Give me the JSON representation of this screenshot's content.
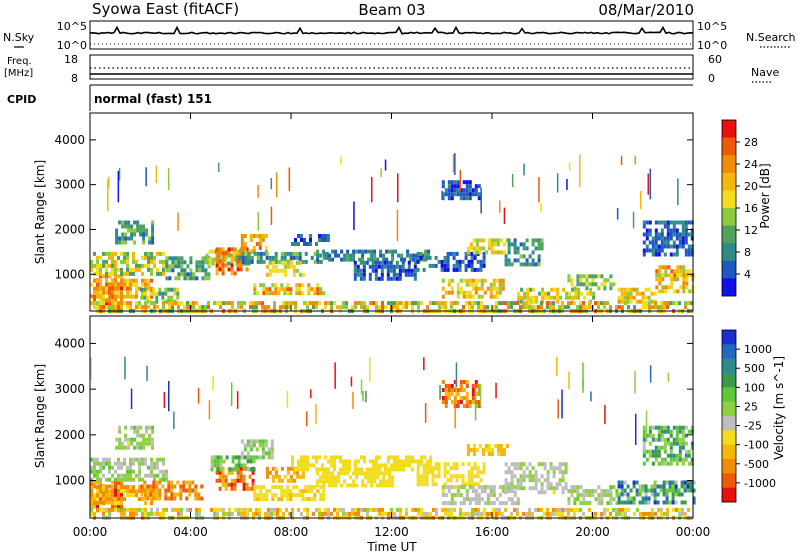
{
  "header": {
    "station": "Syowa East (fitACF)",
    "beam": "Beam 03",
    "date": "08/Mar/2010"
  },
  "nsky_panel": {
    "left_label": "N.Sky",
    "right_label": "N.Search",
    "tick_top": "10^5",
    "tick_bottom": "10^0"
  },
  "freq_panel": {
    "left_label_1": "Freq.",
    "left_label_2": "[MHz]",
    "right_label": "Nave",
    "left_ticks": [
      "18",
      "8"
    ],
    "right_ticks": [
      "60",
      "0"
    ]
  },
  "cpid_panel": {
    "left_label": "CPID",
    "mode": "normal (fast) 151"
  },
  "x_axis": {
    "label": "Time UT",
    "ticks": [
      "00:00",
      "04:00",
      "08:00",
      "12:00",
      "16:00",
      "20:00",
      "00:00"
    ]
  },
  "chart_data": [
    {
      "type": "heatmap",
      "name": "power",
      "ylabel": "Slant Range [km]",
      "ylim": [
        180,
        4600
      ],
      "yticks": [
        1000,
        2000,
        3000,
        4000
      ],
      "xlim_hours": [
        0,
        24
      ],
      "colorbar": {
        "label": "Power [dB]",
        "ticks": [
          "4",
          "8",
          "12",
          "16",
          "20",
          "24",
          "28"
        ],
        "colors": [
          "#1010e8",
          "#1f57c4",
          "#2f8a8a",
          "#4fa25e",
          "#8cc93c",
          "#f1dc1e",
          "#f5b70c",
          "#f28d0a",
          "#ef5a0a",
          "#e61010"
        ]
      },
      "patches": [
        {
          "t": [
            0,
            1.2
          ],
          "r": [
            300,
            1000
          ],
          "v": [
            20,
            32
          ]
        },
        {
          "t": [
            0,
            2.4
          ],
          "r": [
            500,
            900
          ],
          "v": [
            18,
            28
          ]
        },
        {
          "t": [
            0,
            3
          ],
          "r": [
            1000,
            1500
          ],
          "v": [
            12,
            24
          ]
        },
        {
          "t": [
            1,
            2.5
          ],
          "r": [
            1700,
            2200
          ],
          "v": [
            8,
            16
          ]
        },
        {
          "t": [
            2,
            3.5
          ],
          "r": [
            400,
            700
          ],
          "v": [
            10,
            20
          ]
        },
        {
          "t": [
            3,
            4.7
          ],
          "r": [
            900,
            1400
          ],
          "v": [
            8,
            18
          ]
        },
        {
          "t": [
            4.6,
            6.5
          ],
          "r": [
            1200,
            1550
          ],
          "v": [
            12,
            20
          ]
        },
        {
          "t": [
            5,
            6.2
          ],
          "r": [
            1000,
            1600
          ],
          "v": [
            22,
            32
          ]
        },
        {
          "t": [
            6,
            7
          ],
          "r": [
            1500,
            1900
          ],
          "v": [
            20,
            28
          ]
        },
        {
          "t": [
            5.8,
            9.5
          ],
          "r": [
            1300,
            1500
          ],
          "v": [
            8,
            16
          ]
        },
        {
          "t": [
            6.5,
            9.3
          ],
          "r": [
            600,
            800
          ],
          "v": [
            16,
            28
          ]
        },
        {
          "t": [
            7,
            8.5
          ],
          "r": [
            1000,
            1300
          ],
          "v": [
            16,
            24
          ]
        },
        {
          "t": [
            9,
            13.5
          ],
          "r": [
            1300,
            1550
          ],
          "v": [
            6,
            14
          ]
        },
        {
          "t": [
            10.5,
            13
          ],
          "r": [
            900,
            1300
          ],
          "v": [
            4,
            10
          ]
        },
        {
          "t": [
            8,
            9.5
          ],
          "r": [
            1700,
            1900
          ],
          "v": [
            4,
            12
          ]
        },
        {
          "t": [
            13,
            15.7
          ],
          "r": [
            1100,
            1500
          ],
          "v": [
            4,
            12
          ]
        },
        {
          "t": [
            14,
            15.5
          ],
          "r": [
            2700,
            3100
          ],
          "v": [
            4,
            10
          ]
        },
        {
          "t": [
            14,
            16.5
          ],
          "r": [
            500,
            900
          ],
          "v": [
            16,
            26
          ]
        },
        {
          "t": [
            15,
            16.6
          ],
          "r": [
            1500,
            1800
          ],
          "v": [
            16,
            24
          ]
        },
        {
          "t": [
            16.5,
            18
          ],
          "r": [
            1200,
            1800
          ],
          "v": [
            8,
            16
          ]
        },
        {
          "t": [
            17,
            20
          ],
          "r": [
            400,
            700
          ],
          "v": [
            14,
            24
          ]
        },
        {
          "t": [
            19,
            20.8
          ],
          "r": [
            700,
            1000
          ],
          "v": [
            12,
            20
          ]
        },
        {
          "t": [
            21,
            22.5
          ],
          "r": [
            400,
            700
          ],
          "v": [
            16,
            26
          ]
        },
        {
          "t": [
            22.5,
            24
          ],
          "r": [
            600,
            1200
          ],
          "v": [
            16,
            28
          ]
        },
        {
          "t": [
            22,
            24
          ],
          "r": [
            1400,
            2200
          ],
          "v": [
            4,
            12
          ]
        },
        {
          "t": [
            0,
            24
          ],
          "r": [
            200,
            400
          ],
          "v": [
            12,
            28
          ]
        }
      ]
    },
    {
      "type": "heatmap",
      "name": "velocity",
      "ylabel": "Slant Range [km]",
      "ylim": [
        180,
        4600
      ],
      "yticks": [
        1000,
        2000,
        3000,
        4000
      ],
      "xlim_hours": [
        0,
        24
      ],
      "colorbar": {
        "label": "Velocity [m s^-1]",
        "ticks": [
          "1000",
          "500",
          "100",
          "25",
          "-25",
          "-100",
          "-500",
          "-1000"
        ],
        "colors": [
          "#1c2fd0",
          "#2769c0",
          "#2f8a8a",
          "#3b9a4a",
          "#5fc83a",
          "#8fd040",
          "#bdbdbd",
          "#f1dc1e",
          "#f5b70c",
          "#f28d0a",
          "#ef5a0a",
          "#e61010"
        ]
      },
      "patches": [
        {
          "t": [
            0,
            1.2
          ],
          "r": [
            300,
            1000
          ],
          "v": [
            -500,
            -100
          ]
        },
        {
          "t": [
            0,
            2.4
          ],
          "r": [
            500,
            900
          ],
          "v": [
            -300,
            -50
          ]
        },
        {
          "t": [
            0,
            3
          ],
          "r": [
            1000,
            1500
          ],
          "v": [
            50,
            300
          ]
        },
        {
          "t": [
            1,
            2.5
          ],
          "r": [
            1700,
            2200
          ],
          "v": [
            30,
            300
          ]
        },
        {
          "t": [
            2,
            4.5
          ],
          "r": [
            600,
            1000
          ],
          "v": [
            -400,
            -100
          ]
        },
        {
          "t": [
            5,
            6.5
          ],
          "r": [
            800,
            1300
          ],
          "v": [
            -500,
            -100
          ]
        },
        {
          "t": [
            6,
            7.2
          ],
          "r": [
            1500,
            1900
          ],
          "v": [
            50,
            400
          ]
        },
        {
          "t": [
            4.8,
            6.5
          ],
          "r": [
            1200,
            1550
          ],
          "v": [
            100,
            500
          ]
        },
        {
          "t": [
            6.5,
            9.3
          ],
          "r": [
            600,
            900
          ],
          "v": [
            -100,
            -30
          ]
        },
        {
          "t": [
            7,
            8.5
          ],
          "r": [
            1000,
            1300
          ],
          "v": [
            -300,
            -50
          ]
        },
        {
          "t": [
            8,
            13.5
          ],
          "r": [
            1200,
            1550
          ],
          "v": [
            -20,
            20
          ]
        },
        {
          "t": [
            9,
            12
          ],
          "r": [
            900,
            1200
          ],
          "v": [
            -20,
            20
          ]
        },
        {
          "t": [
            13,
            15.7
          ],
          "r": [
            900,
            1400
          ],
          "v": [
            -20,
            20
          ]
        },
        {
          "t": [
            14,
            15.5
          ],
          "r": [
            2600,
            3200
          ],
          "v": [
            -500,
            -100
          ]
        },
        {
          "t": [
            15,
            16.6
          ],
          "r": [
            1600,
            1800
          ],
          "v": [
            -150,
            -50
          ]
        },
        {
          "t": [
            14,
            17
          ],
          "r": [
            500,
            900
          ],
          "v": [
            30,
            200
          ]
        },
        {
          "t": [
            16.5,
            19
          ],
          "r": [
            700,
            1400
          ],
          "v": [
            30,
            200
          ]
        },
        {
          "t": [
            19,
            21
          ],
          "r": [
            500,
            900
          ],
          "v": [
            30,
            300
          ]
        },
        {
          "t": [
            21,
            24
          ],
          "r": [
            500,
            1000
          ],
          "v": [
            100,
            800
          ]
        },
        {
          "t": [
            22,
            24
          ],
          "r": [
            1400,
            2200
          ],
          "v": [
            100,
            600
          ]
        },
        {
          "t": [
            0,
            24
          ],
          "r": [
            200,
            400
          ],
          "v": [
            -300,
            200
          ]
        }
      ]
    }
  ]
}
